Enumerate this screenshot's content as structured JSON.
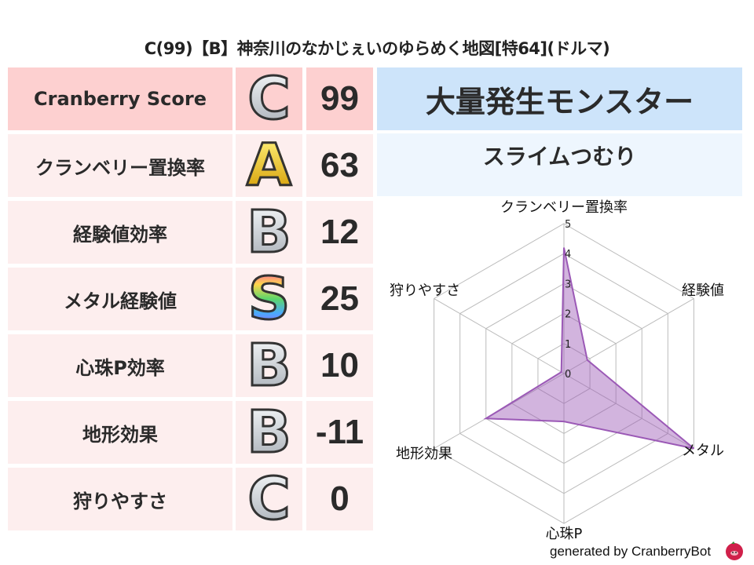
{
  "title": "C(99)【B】神奈川のなかじぇいのゆらめく地図[特64](ドルマ)",
  "rows": [
    {
      "label": "Cranberry Score",
      "grade": "C",
      "score": "99"
    },
    {
      "label": "クランベリー置換率",
      "grade": "A",
      "score": "63"
    },
    {
      "label": "経験値効率",
      "grade": "B",
      "score": "12"
    },
    {
      "label": "メタル経験値",
      "grade": "S",
      "score": "25"
    },
    {
      "label": "心珠P効率",
      "grade": "B",
      "score": "10"
    },
    {
      "label": "地形効果",
      "grade": "B",
      "score": "-11"
    },
    {
      "label": "狩りやすさ",
      "grade": "C",
      "score": "0"
    }
  ],
  "monster": {
    "header": "大量発生モンスター",
    "name": "スライムつむり"
  },
  "footer": "generated by CranberryBot",
  "colors": {
    "header_row": "#fdd0d0",
    "row": "#fdeeee",
    "monster_header": "#cde4fa",
    "monster_name": "#eef6fe",
    "series": "#9b59b6",
    "grade_C": "#c8ccd2",
    "grade_A": "#e8b800",
    "grade_B": "#c8ccd2"
  },
  "chart_data": {
    "type": "radar",
    "axes": [
      "クランベリー置換率",
      "経験値",
      "メタル",
      "心珠P",
      "地形効果",
      "狩りやすさ"
    ],
    "values": [
      4.2,
      0.9,
      5.0,
      1.6,
      3.0,
      0.1
    ],
    "rlim": [
      0,
      5
    ],
    "ticks": [
      "0",
      "1",
      "2",
      "3",
      "4",
      "5"
    ],
    "grid": true
  }
}
